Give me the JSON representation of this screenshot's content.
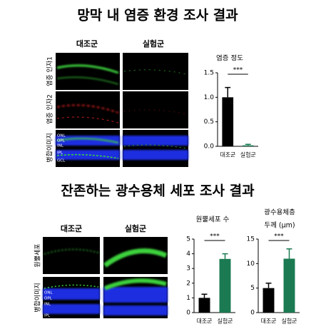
{
  "sections": [
    {
      "title": "망막 내 염증 환경 조사 결과",
      "columns": [
        "대조군",
        "실험군"
      ],
      "rows": [
        "염증 인자1",
        "염증 인자2",
        "병합이미지"
      ],
      "layers": [
        "ONL",
        "OPL",
        "INL",
        "IPL",
        "GCL"
      ]
    },
    {
      "title": "잔존하는 광수용체 세포 조사 결과",
      "columns": [
        "대조군",
        "실험군"
      ],
      "rows": [
        "원뿔세포",
        "병합이미지"
      ],
      "layers": [
        "ONL",
        "OPL",
        "INL",
        "IPL"
      ]
    }
  ],
  "chart_data": [
    {
      "type": "bar",
      "title": "염증 정도",
      "categories": [
        "대조군",
        "실험군"
      ],
      "values": [
        1.0,
        0.02
      ],
      "errors": [
        0.2,
        0.02
      ],
      "colors": [
        "#000000",
        "#1b7a52"
      ],
      "annotation": "***",
      "ylim": [
        0,
        1.5
      ],
      "yticks": [
        {
          "value": 0,
          "label": "0.0"
        },
        {
          "value": 0.5,
          "label": "0.5"
        },
        {
          "value": 1,
          "label": "1.0"
        },
        {
          "value": 1.5,
          "label": "1.5"
        }
      ]
    },
    {
      "type": "bar",
      "title": "원뿔세포 수",
      "categories": [
        "대조군",
        "실험군"
      ],
      "values": [
        1.0,
        3.65
      ],
      "errors": [
        0.25,
        0.35
      ],
      "colors": [
        "#000000",
        "#1b7a52"
      ],
      "annotation": "***",
      "ylim": [
        0,
        5
      ],
      "yticks": [
        0,
        1,
        2,
        3,
        4,
        5
      ]
    },
    {
      "type": "bar",
      "title": "광수용체층",
      "subtitle": "두께 (μm)",
      "categories": [
        "대조군",
        "실험군"
      ],
      "values": [
        5,
        11
      ],
      "errors": [
        1,
        2
      ],
      "colors": [
        "#000000",
        "#1b7a52"
      ],
      "annotation": "***",
      "ylim": [
        0,
        15
      ],
      "yticks": [
        0,
        5,
        10,
        15
      ]
    }
  ]
}
